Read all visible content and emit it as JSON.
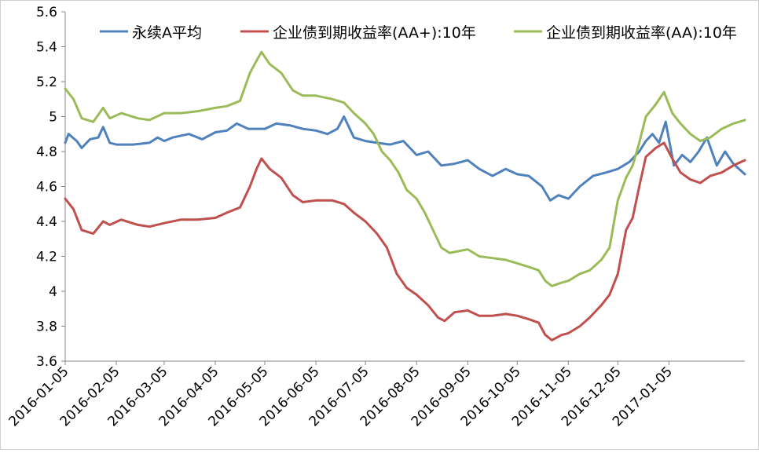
{
  "chart_data": {
    "type": "line",
    "title": "",
    "xlabel": "",
    "ylabel": "",
    "ylim": [
      3.6,
      5.6
    ],
    "y_ticks": [
      "3.6",
      "3.8",
      "4",
      "4.2",
      "4.4",
      "4.6",
      "4.8",
      "5",
      "5.2",
      "5.4",
      "5.6"
    ],
    "y_tick_values": [
      3.6,
      3.8,
      4.0,
      4.2,
      4.4,
      4.6,
      4.8,
      5.0,
      5.2,
      5.4,
      5.6
    ],
    "x_range": [
      "2016-01-05",
      "2017-02-20"
    ],
    "x_ticks": [
      "2016-01-05",
      "2016-02-05",
      "2016-03-05",
      "2016-04-05",
      "2016-05-05",
      "2016-06-05",
      "2016-07-05",
      "2016-08-05",
      "2016-09-05",
      "2016-10-05",
      "2016-11-05",
      "2016-12-05",
      "2017-01-05"
    ],
    "grid": false,
    "legend_position": "top",
    "series": [
      {
        "name": "永续A平均",
        "color": "#4F81BD",
        "points": [
          [
            "2016-01-05",
            4.85
          ],
          [
            "2016-01-07",
            4.9
          ],
          [
            "2016-01-12",
            4.86
          ],
          [
            "2016-01-15",
            4.82
          ],
          [
            "2016-01-20",
            4.87
          ],
          [
            "2016-01-25",
            4.88
          ],
          [
            "2016-01-28",
            4.94
          ],
          [
            "2016-02-01",
            4.85
          ],
          [
            "2016-02-05",
            4.84
          ],
          [
            "2016-02-15",
            4.84
          ],
          [
            "2016-02-25",
            4.85
          ],
          [
            "2016-03-01",
            4.88
          ],
          [
            "2016-03-05",
            4.86
          ],
          [
            "2016-03-10",
            4.88
          ],
          [
            "2016-03-20",
            4.9
          ],
          [
            "2016-03-28",
            4.87
          ],
          [
            "2016-04-05",
            4.91
          ],
          [
            "2016-04-12",
            4.92
          ],
          [
            "2016-04-18",
            4.96
          ],
          [
            "2016-04-25",
            4.93
          ],
          [
            "2016-05-05",
            4.93
          ],
          [
            "2016-05-12",
            4.96
          ],
          [
            "2016-05-20",
            4.95
          ],
          [
            "2016-05-28",
            4.93
          ],
          [
            "2016-06-05",
            4.92
          ],
          [
            "2016-06-12",
            4.9
          ],
          [
            "2016-06-18",
            4.93
          ],
          [
            "2016-06-22",
            5.0
          ],
          [
            "2016-06-28",
            4.88
          ],
          [
            "2016-07-05",
            4.86
          ],
          [
            "2016-07-12",
            4.85
          ],
          [
            "2016-07-20",
            4.84
          ],
          [
            "2016-07-28",
            4.86
          ],
          [
            "2016-08-05",
            4.78
          ],
          [
            "2016-08-12",
            4.8
          ],
          [
            "2016-08-20",
            4.72
          ],
          [
            "2016-08-28",
            4.73
          ],
          [
            "2016-09-05",
            4.75
          ],
          [
            "2016-09-12",
            4.7
          ],
          [
            "2016-09-20",
            4.66
          ],
          [
            "2016-09-28",
            4.7
          ],
          [
            "2016-10-05",
            4.67
          ],
          [
            "2016-10-12",
            4.66
          ],
          [
            "2016-10-20",
            4.6
          ],
          [
            "2016-10-25",
            4.52
          ],
          [
            "2016-10-30",
            4.55
          ],
          [
            "2016-11-05",
            4.53
          ],
          [
            "2016-11-12",
            4.6
          ],
          [
            "2016-11-20",
            4.66
          ],
          [
            "2016-11-28",
            4.68
          ],
          [
            "2016-12-05",
            4.7
          ],
          [
            "2016-12-12",
            4.74
          ],
          [
            "2016-12-18",
            4.8
          ],
          [
            "2016-12-22",
            4.86
          ],
          [
            "2016-12-26",
            4.9
          ],
          [
            "2016-12-30",
            4.85
          ],
          [
            "2017-01-03",
            4.97
          ],
          [
            "2017-01-08",
            4.72
          ],
          [
            "2017-01-13",
            4.78
          ],
          [
            "2017-01-18",
            4.74
          ],
          [
            "2017-01-23",
            4.8
          ],
          [
            "2017-01-28",
            4.88
          ],
          [
            "2017-02-03",
            4.72
          ],
          [
            "2017-02-08",
            4.8
          ],
          [
            "2017-02-13",
            4.73
          ],
          [
            "2017-02-20",
            4.67
          ]
        ]
      },
      {
        "name": "企业债到期收益率(AA+):10年",
        "color": "#C0504D",
        "points": [
          [
            "2016-01-05",
            4.53
          ],
          [
            "2016-01-10",
            4.47
          ],
          [
            "2016-01-15",
            4.35
          ],
          [
            "2016-01-22",
            4.33
          ],
          [
            "2016-01-28",
            4.4
          ],
          [
            "2016-02-01",
            4.38
          ],
          [
            "2016-02-08",
            4.41
          ],
          [
            "2016-02-18",
            4.38
          ],
          [
            "2016-02-25",
            4.37
          ],
          [
            "2016-03-05",
            4.39
          ],
          [
            "2016-03-15",
            4.41
          ],
          [
            "2016-03-25",
            4.41
          ],
          [
            "2016-04-05",
            4.42
          ],
          [
            "2016-04-12",
            4.45
          ],
          [
            "2016-04-20",
            4.48
          ],
          [
            "2016-04-26",
            4.6
          ],
          [
            "2016-04-30",
            4.7
          ],
          [
            "2016-05-03",
            4.76
          ],
          [
            "2016-05-08",
            4.7
          ],
          [
            "2016-05-15",
            4.65
          ],
          [
            "2016-05-22",
            4.55
          ],
          [
            "2016-05-28",
            4.51
          ],
          [
            "2016-06-05",
            4.52
          ],
          [
            "2016-06-15",
            4.52
          ],
          [
            "2016-06-22",
            4.5
          ],
          [
            "2016-06-28",
            4.45
          ],
          [
            "2016-07-05",
            4.4
          ],
          [
            "2016-07-12",
            4.33
          ],
          [
            "2016-07-18",
            4.25
          ],
          [
            "2016-07-24",
            4.1
          ],
          [
            "2016-07-30",
            4.02
          ],
          [
            "2016-08-05",
            3.98
          ],
          [
            "2016-08-12",
            3.92
          ],
          [
            "2016-08-18",
            3.85
          ],
          [
            "2016-08-22",
            3.83
          ],
          [
            "2016-08-28",
            3.88
          ],
          [
            "2016-09-05",
            3.89
          ],
          [
            "2016-09-12",
            3.86
          ],
          [
            "2016-09-20",
            3.86
          ],
          [
            "2016-09-28",
            3.87
          ],
          [
            "2016-10-05",
            3.86
          ],
          [
            "2016-10-12",
            3.84
          ],
          [
            "2016-10-18",
            3.82
          ],
          [
            "2016-10-22",
            3.75
          ],
          [
            "2016-10-26",
            3.72
          ],
          [
            "2016-11-01",
            3.75
          ],
          [
            "2016-11-05",
            3.76
          ],
          [
            "2016-11-12",
            3.8
          ],
          [
            "2016-11-18",
            3.85
          ],
          [
            "2016-11-25",
            3.92
          ],
          [
            "2016-11-30",
            3.98
          ],
          [
            "2016-12-05",
            4.1
          ],
          [
            "2016-12-10",
            4.35
          ],
          [
            "2016-12-14",
            4.42
          ],
          [
            "2016-12-18",
            4.6
          ],
          [
            "2016-12-22",
            4.77
          ],
          [
            "2016-12-28",
            4.82
          ],
          [
            "2017-01-02",
            4.85
          ],
          [
            "2017-01-07",
            4.76
          ],
          [
            "2017-01-12",
            4.68
          ],
          [
            "2017-01-18",
            4.64
          ],
          [
            "2017-01-24",
            4.62
          ],
          [
            "2017-01-30",
            4.66
          ],
          [
            "2017-02-06",
            4.68
          ],
          [
            "2017-02-13",
            4.72
          ],
          [
            "2017-02-20",
            4.75
          ]
        ]
      },
      {
        "name": "企业债到期收益率(AA):10年",
        "color": "#9BBB59",
        "points": [
          [
            "2016-01-05",
            5.16
          ],
          [
            "2016-01-10",
            5.1
          ],
          [
            "2016-01-15",
            4.99
          ],
          [
            "2016-01-22",
            4.97
          ],
          [
            "2016-01-28",
            5.05
          ],
          [
            "2016-02-01",
            4.99
          ],
          [
            "2016-02-08",
            5.02
          ],
          [
            "2016-02-18",
            4.99
          ],
          [
            "2016-02-25",
            4.98
          ],
          [
            "2016-03-05",
            5.02
          ],
          [
            "2016-03-15",
            5.02
          ],
          [
            "2016-03-25",
            5.03
          ],
          [
            "2016-04-05",
            5.05
          ],
          [
            "2016-04-12",
            5.06
          ],
          [
            "2016-04-20",
            5.09
          ],
          [
            "2016-04-26",
            5.25
          ],
          [
            "2016-04-30",
            5.32
          ],
          [
            "2016-05-03",
            5.37
          ],
          [
            "2016-05-08",
            5.3
          ],
          [
            "2016-05-15",
            5.25
          ],
          [
            "2016-05-22",
            5.15
          ],
          [
            "2016-05-28",
            5.12
          ],
          [
            "2016-06-05",
            5.12
          ],
          [
            "2016-06-15",
            5.1
          ],
          [
            "2016-06-22",
            5.08
          ],
          [
            "2016-06-28",
            5.02
          ],
          [
            "2016-07-05",
            4.96
          ],
          [
            "2016-07-10",
            4.9
          ],
          [
            "2016-07-15",
            4.8
          ],
          [
            "2016-07-20",
            4.75
          ],
          [
            "2016-07-25",
            4.68
          ],
          [
            "2016-07-30",
            4.58
          ],
          [
            "2016-08-05",
            4.53
          ],
          [
            "2016-08-10",
            4.45
          ],
          [
            "2016-08-15",
            4.35
          ],
          [
            "2016-08-20",
            4.25
          ],
          [
            "2016-08-25",
            4.22
          ],
          [
            "2016-09-05",
            4.24
          ],
          [
            "2016-09-12",
            4.2
          ],
          [
            "2016-09-20",
            4.19
          ],
          [
            "2016-09-28",
            4.18
          ],
          [
            "2016-10-05",
            4.16
          ],
          [
            "2016-10-12",
            4.14
          ],
          [
            "2016-10-18",
            4.12
          ],
          [
            "2016-10-22",
            4.06
          ],
          [
            "2016-10-26",
            4.03
          ],
          [
            "2016-11-01",
            4.05
          ],
          [
            "2016-11-05",
            4.06
          ],
          [
            "2016-11-12",
            4.1
          ],
          [
            "2016-11-18",
            4.12
          ],
          [
            "2016-11-25",
            4.18
          ],
          [
            "2016-11-30",
            4.25
          ],
          [
            "2016-12-05",
            4.52
          ],
          [
            "2016-12-10",
            4.65
          ],
          [
            "2016-12-14",
            4.72
          ],
          [
            "2016-12-18",
            4.85
          ],
          [
            "2016-12-22",
            5.0
          ],
          [
            "2016-12-28",
            5.07
          ],
          [
            "2017-01-02",
            5.14
          ],
          [
            "2017-01-07",
            5.02
          ],
          [
            "2017-01-12",
            4.96
          ],
          [
            "2017-01-18",
            4.9
          ],
          [
            "2017-01-24",
            4.86
          ],
          [
            "2017-01-30",
            4.88
          ],
          [
            "2017-02-06",
            4.93
          ],
          [
            "2017-02-13",
            4.96
          ],
          [
            "2017-02-20",
            4.98
          ]
        ]
      }
    ]
  }
}
